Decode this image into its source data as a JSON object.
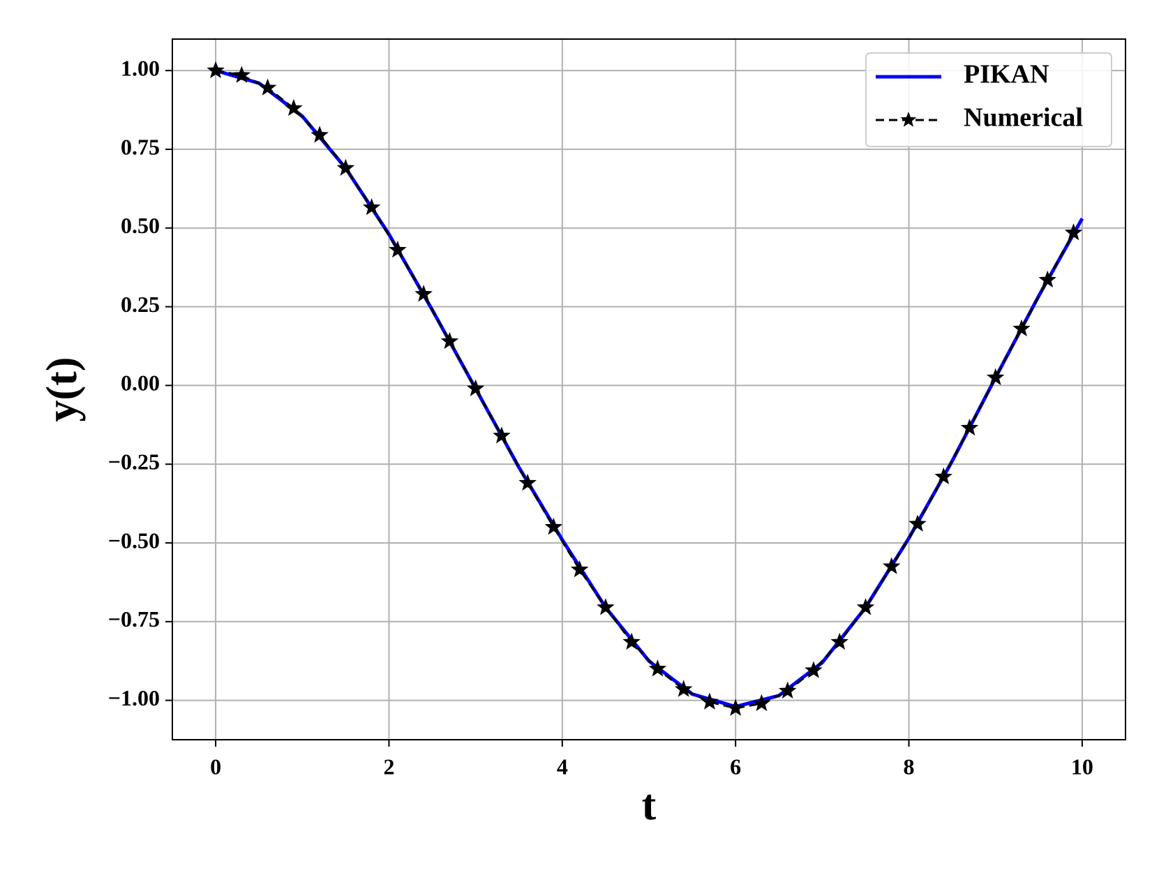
{
  "chart_data": {
    "type": "line",
    "xlabel": "t",
    "ylabel": "y(t)",
    "xlim": [
      -0.5,
      10.5
    ],
    "ylim": [
      -1.125,
      1.1
    ],
    "xticks": [
      0,
      2,
      4,
      6,
      8,
      10
    ],
    "yticks": [
      {
        "value": 1,
        "label": "1.00"
      },
      {
        "value": 0.75,
        "label": "0.75"
      },
      {
        "value": 0.5,
        "label": "0.50"
      },
      {
        "value": 0.25,
        "label": "0.25"
      },
      {
        "value": 0,
        "label": "0.00"
      },
      {
        "value": -0.25,
        "label": "−0.25"
      },
      {
        "value": -0.5,
        "label": "−0.50"
      },
      {
        "value": -0.75,
        "label": "−0.75"
      },
      {
        "value": -1,
        "label": "−1.00"
      }
    ],
    "grid": true,
    "legend": "upper right",
    "series": [
      {
        "name": "PIKAN",
        "color": "#0000ff",
        "style": "solid",
        "x": [
          0,
          0.5,
          1,
          1.5,
          2,
          2.5,
          3,
          3.5,
          4,
          4.5,
          5,
          5.5,
          6,
          6.5,
          7,
          7.5,
          8,
          8.5,
          9,
          9.5,
          10
        ],
        "values": [
          1.0,
          0.96,
          0.855,
          0.69,
          0.48,
          0.24,
          -0.01,
          -0.26,
          -0.49,
          -0.705,
          -0.875,
          -0.98,
          -1.02,
          -0.985,
          -0.88,
          -0.705,
          -0.485,
          -0.24,
          0.025,
          0.285,
          0.53
        ]
      },
      {
        "name": "Numerical",
        "color": "#000000",
        "style": "dashed",
        "marker": "star",
        "x": [
          0,
          0.3,
          0.6,
          0.9,
          1.2,
          1.5,
          1.8,
          2.1,
          2.4,
          2.7,
          3.0,
          3.3,
          3.6,
          3.9,
          4.2,
          4.5,
          4.8,
          5.1,
          5.4,
          5.7,
          6.0,
          6.3,
          6.6,
          6.9,
          7.2,
          7.5,
          7.8,
          8.1,
          8.4,
          8.7,
          9.0,
          9.3,
          9.6,
          9.9
        ],
        "values": [
          1.0,
          0.985,
          0.945,
          0.88,
          0.795,
          0.69,
          0.565,
          0.43,
          0.29,
          0.14,
          -0.01,
          -0.16,
          -0.31,
          -0.45,
          -0.585,
          -0.705,
          -0.815,
          -0.9,
          -0.965,
          -1.005,
          -1.025,
          -1.01,
          -0.97,
          -0.905,
          -0.815,
          -0.705,
          -0.575,
          -0.44,
          -0.29,
          -0.135,
          0.025,
          0.18,
          0.335,
          0.485
        ]
      }
    ]
  }
}
